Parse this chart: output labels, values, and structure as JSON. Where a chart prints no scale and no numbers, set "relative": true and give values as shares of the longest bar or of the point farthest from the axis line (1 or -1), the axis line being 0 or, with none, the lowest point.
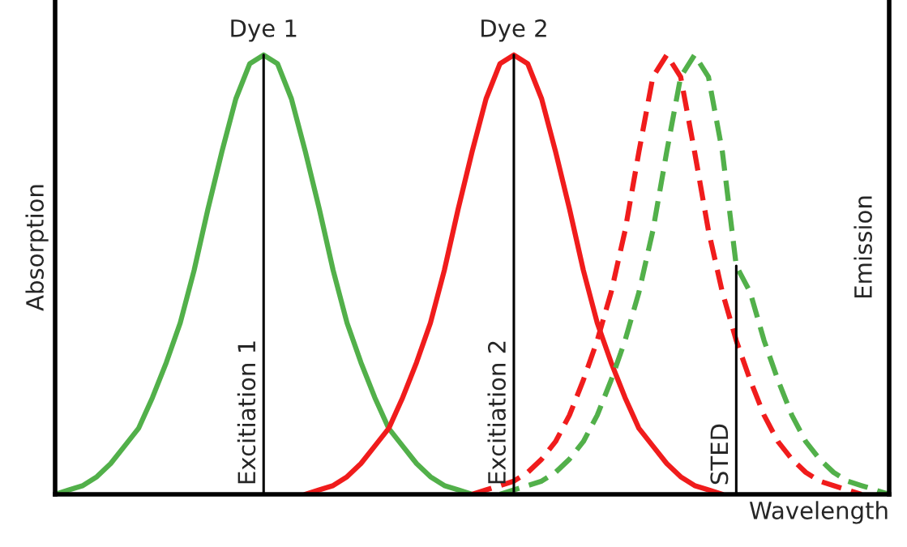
{
  "chart_data": {
    "type": "line",
    "relative": true,
    "xlabel": "Wavelength",
    "ylabel": "Absorption",
    "y2label": "Emission",
    "legend": false,
    "marker": "none",
    "categories": [
      null,
      null,
      null,
      null,
      null,
      null,
      null,
      null,
      null,
      null,
      null,
      null,
      null,
      null,
      null,
      null,
      null,
      null,
      null,
      null,
      null,
      null,
      null,
      null,
      null,
      null,
      null,
      null,
      null,
      null,
      null,
      null,
      null,
      null,
      null,
      null,
      null,
      null,
      null,
      null,
      null,
      null,
      null,
      null,
      null,
      null,
      null,
      null,
      null,
      null,
      null,
      null,
      null,
      null,
      null,
      null,
      null,
      null,
      null,
      null,
      null
    ],
    "series": [
      {
        "color": "#52b04a",
        "line_style": "solid",
        "values": [
          0,
          0.01,
          0.02,
          0.04,
          0.07,
          0.11,
          0.15,
          0.22,
          0.3,
          0.39,
          0.51,
          0.65,
          0.78,
          0.9,
          0.98,
          1,
          0.98,
          0.9,
          0.78,
          0.65,
          0.51,
          0.39,
          0.3,
          0.22,
          0.15,
          0.11,
          0.07,
          0.04,
          0.02,
          0.01,
          0,
          null,
          null,
          null,
          null,
          null,
          null,
          null,
          null,
          null,
          null,
          null,
          null,
          null,
          null,
          null,
          null,
          null,
          null,
          null,
          null,
          null,
          null,
          null,
          null,
          null,
          null,
          null,
          null,
          null,
          null
        ]
      },
      {
        "color": "#f01c1c",
        "line_style": "solid",
        "values": [
          null,
          null,
          null,
          null,
          null,
          null,
          null,
          null,
          null,
          null,
          null,
          null,
          null,
          null,
          null,
          null,
          null,
          null,
          0,
          0.01,
          0.02,
          0.04,
          0.07,
          0.11,
          0.15,
          0.22,
          0.3,
          0.39,
          0.51,
          0.65,
          0.78,
          0.9,
          0.98,
          1,
          0.98,
          0.9,
          0.78,
          0.65,
          0.51,
          0.39,
          0.3,
          0.22,
          0.15,
          0.11,
          0.07,
          0.04,
          0.02,
          0.01,
          0,
          null,
          null,
          null,
          null,
          null,
          null,
          null,
          null,
          null,
          null,
          null,
          null
        ]
      },
      {
        "color": "#f01c1c",
        "line_style": "dashed",
        "values": [
          null,
          null,
          null,
          null,
          null,
          null,
          null,
          null,
          null,
          null,
          null,
          null,
          null,
          null,
          null,
          null,
          null,
          null,
          null,
          null,
          null,
          null,
          null,
          null,
          null,
          null,
          null,
          null,
          null,
          null,
          0,
          0.01,
          0.02,
          0.03,
          0.05,
          0.08,
          0.12,
          0.18,
          0.26,
          0.35,
          0.46,
          0.6,
          0.78,
          0.95,
          1,
          0.95,
          0.78,
          0.6,
          0.46,
          0.35,
          0.26,
          0.18,
          0.12,
          0.08,
          0.05,
          0.03,
          0.02,
          0.01,
          0,
          null,
          null
        ]
      },
      {
        "color": "#52b04a",
        "line_style": "dashed",
        "values": [
          null,
          null,
          null,
          null,
          null,
          null,
          null,
          null,
          null,
          null,
          null,
          null,
          null,
          null,
          null,
          null,
          null,
          null,
          null,
          null,
          null,
          null,
          null,
          null,
          null,
          null,
          null,
          null,
          null,
          null,
          null,
          null,
          0,
          0.01,
          0.02,
          0.03,
          0.05,
          0.08,
          0.12,
          0.18,
          0.26,
          0.35,
          0.46,
          0.6,
          0.78,
          0.95,
          1,
          0.95,
          0.78,
          0.52,
          0.46,
          0.35,
          0.26,
          0.18,
          0.12,
          0.08,
          0.05,
          0.03,
          0.02,
          0.01,
          0
        ]
      }
    ],
    "annotations": [
      "Dye 1",
      "Dye 2",
      "Excitiation 1",
      "Excitiation 2",
      "STED"
    ]
  }
}
